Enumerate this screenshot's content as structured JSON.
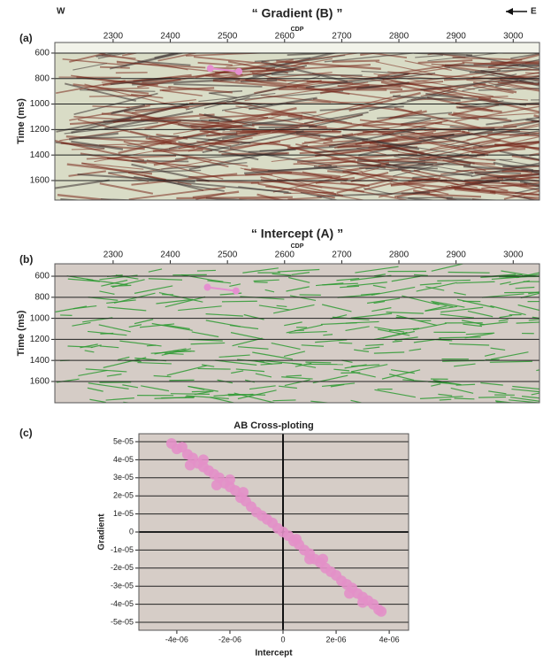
{
  "chart_data": [
    {
      "type": "seismic",
      "label": "(a)",
      "title": "“ Gradient (B) ”",
      "left_label": "W",
      "right_label": "E",
      "xlabel": "CDP",
      "ylabel": "Time (ms)",
      "xlim": [
        2198,
        3046
      ],
      "ylim": [
        1753,
        517
      ],
      "xticks": [
        2300,
        2400,
        2500,
        2600,
        2700,
        2800,
        2900,
        3000
      ],
      "yticks": [
        600,
        800,
        1000,
        1200,
        1400,
        1600
      ],
      "background": "#d9dcc6",
      "streak_color": "#7a2a1e",
      "markers": {
        "color": "#e58fd0",
        "x": [
          2470,
          2520
        ],
        "y": [
          720,
          745
        ]
      }
    },
    {
      "type": "seismic",
      "label": "(b)",
      "title": "“ Intercept (A) ”",
      "xlabel": "CDP",
      "ylabel": "Time (ms)",
      "xlim": [
        2198,
        3046
      ],
      "ylim": [
        1802,
        482
      ],
      "xticks": [
        2300,
        2400,
        2500,
        2600,
        2700,
        2800,
        2900,
        3000
      ],
      "yticks": [
        600,
        800,
        1000,
        1200,
        1400,
        1600
      ],
      "background": "#d5ccc6",
      "streak_color": "#2e9a32",
      "markers": {
        "color": "#e58fd0",
        "x": [
          2465,
          2515
        ],
        "y": [
          705,
          740
        ]
      }
    },
    {
      "type": "scatter",
      "label": "(c)",
      "title": "AB Cross-ploting",
      "xlabel": "Intercept",
      "ylabel": "Gradient",
      "xlim": [
        -5.43e-06,
        4.73e-06
      ],
      "ylim": [
        -5.44e-05,
        5.44e-05
      ],
      "xticks": [
        {
          "value": -4e-06,
          "label": "-4e-06"
        },
        {
          "value": -2e-06,
          "label": "-2e-06"
        },
        0,
        {
          "value": 2e-06,
          "label": "2e-06"
        },
        {
          "value": 4e-06,
          "label": "4e-06"
        }
      ],
      "yticks": [
        {
          "value": 5e-05,
          "label": "5e-05"
        },
        {
          "value": 4e-05,
          "label": "4e-05"
        },
        {
          "value": 3e-05,
          "label": "3e-05"
        },
        {
          "value": 2e-05,
          "label": "2e-05"
        },
        {
          "value": 1e-05,
          "label": "1e-05"
        },
        0,
        {
          "value": -1e-05,
          "label": "-1e-05"
        },
        {
          "value": -2e-05,
          "label": "-2e-05"
        },
        {
          "value": -3e-05,
          "label": "-3e-05"
        },
        {
          "value": -4e-05,
          "label": "-4e-05"
        },
        {
          "value": -5e-05,
          "label": "-5e-05"
        }
      ],
      "color": "#e390c8",
      "background": "#d6cdc7",
      "x": [
        -4.2e-06,
        -4e-06,
        -3.8e-06,
        -3.6e-06,
        -3.4e-06,
        -3.2e-06,
        -3e-06,
        -2.8e-06,
        -2.6e-06,
        -2.4e-06,
        -2.2e-06,
        -2e-06,
        -1.8e-06,
        -1.6e-06,
        -1.4e-06,
        -1.2e-06,
        -1e-06,
        -8e-07,
        -6e-07,
        -4e-07,
        -2e-07,
        0,
        2e-07,
        4e-07,
        6e-07,
        8e-07,
        1e-06,
        1.2e-06,
        1.4e-06,
        1.6e-06,
        1.8e-06,
        2e-06,
        2.2e-06,
        2.4e-06,
        2.6e-06,
        2.8e-06,
        3e-06,
        3.2e-06,
        3.4e-06,
        3.6e-06,
        3.7e-06,
        -2.5e-06,
        -3e-06,
        -1.5e-06,
        1.5e-06,
        2.5e-06,
        3e-06,
        -3.5e-06,
        -2e-06,
        5e-07,
        1e-06
      ],
      "y": [
        4.9e-05,
        4.6e-05,
        4.7e-05,
        4.3e-05,
        4.1e-05,
        3.8e-05,
        3.6e-05,
        3.4e-05,
        3.2e-05,
        3e-05,
        2.7e-05,
        2.5e-05,
        2.3e-05,
        1.9e-05,
        1.7e-05,
        1.4e-05,
        1.1e-05,
        9e-06,
        7e-06,
        5e-06,
        2e-06,
        0,
        -2e-06,
        -5e-06,
        -7e-06,
        -1e-05,
        -1.2e-05,
        -1.5e-05,
        -1.7e-05,
        -2e-05,
        -2.2e-05,
        -2.4e-05,
        -2.7e-05,
        -2.9e-05,
        -3.1e-05,
        -3.4e-05,
        -3.6e-05,
        -3.8e-05,
        -4e-05,
        -4.3e-05,
        -4.4e-05,
        2.6e-05,
        4e-05,
        2.2e-05,
        -1.5e-05,
        -3.4e-05,
        -3.9e-05,
        3.7e-05,
        2.9e-05,
        -4e-06,
        -1.5e-05
      ]
    }
  ]
}
